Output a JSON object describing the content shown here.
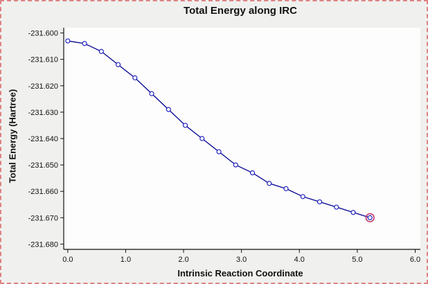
{
  "window": {
    "border_color": "#dd8484",
    "background": "#f0f0ee",
    "plot_background": "#fdfdfd"
  },
  "chart_data": {
    "type": "line",
    "title": "Total Energy along IRC",
    "xlabel": "Intrinsic Reaction Coordinate",
    "ylabel": "Total Energy (Hartree)",
    "xlim": [
      0.0,
      6.0
    ],
    "ylim": [
      -231.68,
      -231.6
    ],
    "x_ticks": [
      0.0,
      1.0,
      2.0,
      3.0,
      4.0,
      5.0,
      6.0
    ],
    "x_tick_labels": [
      "0.0",
      "1.0",
      "2.0",
      "3.0",
      "4.0",
      "5.0",
      "6.0"
    ],
    "y_ticks": [
      -231.6,
      -231.61,
      -231.62,
      -231.63,
      -231.64,
      -231.65,
      -231.66,
      -231.67,
      -231.68
    ],
    "y_tick_labels": [
      "-231.600",
      "-231.610",
      "-231.620",
      "-231.630",
      "-231.640",
      "-231.650",
      "-231.660",
      "-231.670",
      "-231.680"
    ],
    "x": [
      0.0,
      0.29,
      0.58,
      0.87,
      1.16,
      1.45,
      1.74,
      2.03,
      2.32,
      2.61,
      2.9,
      3.19,
      3.48,
      3.77,
      4.06,
      4.35,
      4.64,
      4.93,
      5.22
    ],
    "y": [
      -231.603,
      -231.604,
      -231.607,
      -231.612,
      -231.617,
      -231.623,
      -231.629,
      -231.635,
      -231.64,
      -231.645,
      -231.65,
      -231.653,
      -231.657,
      -231.659,
      -231.662,
      -231.664,
      -231.666,
      -231.668,
      -231.67
    ],
    "selected_index": 18,
    "line_color": "#000090",
    "marker_color": "#2424c0",
    "selected_ring_color": "#c03060",
    "grid": false,
    "legend": "none"
  }
}
